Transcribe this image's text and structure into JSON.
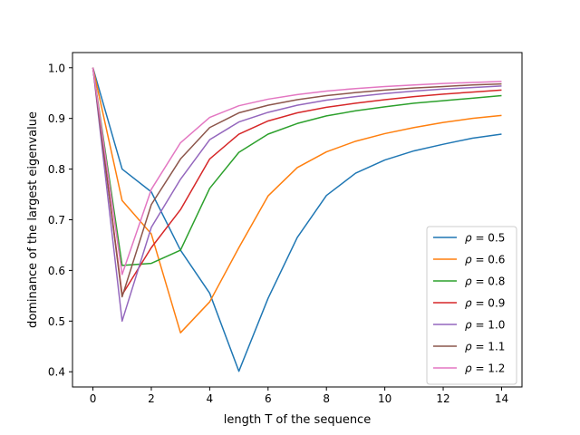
{
  "chart_data": {
    "type": "line",
    "title": "",
    "xlabel": "length T of the sequence",
    "ylabel": "dominance of the largest eigenvalue",
    "xlim": [
      -0.7,
      14.7
    ],
    "ylim": [
      0.37,
      1.03
    ],
    "xticks": [
      0,
      2,
      4,
      6,
      8,
      10,
      12,
      14
    ],
    "yticks": [
      0.4,
      0.5,
      0.6,
      0.7,
      0.8,
      0.9,
      1.0
    ],
    "xtick_labels": [
      "0",
      "2",
      "4",
      "6",
      "8",
      "10",
      "12",
      "14"
    ],
    "ytick_labels": [
      "0.4",
      "0.5",
      "0.6",
      "0.7",
      "0.8",
      "0.9",
      "1.0"
    ],
    "grid": false,
    "legend_position": "lower right",
    "x": [
      0,
      1,
      2,
      3,
      4,
      5,
      6,
      7,
      8,
      9,
      10,
      11,
      12,
      13,
      14
    ],
    "series": [
      {
        "name": "ρ = 0.5",
        "symbol": "ρ",
        "value_label": "= 0.5",
        "color": "#1f77b4",
        "values": [
          1.0,
          0.8,
          0.755,
          0.64,
          0.555,
          0.401,
          0.545,
          0.665,
          0.748,
          0.792,
          0.818,
          0.836,
          0.849,
          0.861,
          0.869
        ]
      },
      {
        "name": "ρ = 0.6",
        "symbol": "ρ",
        "value_label": "= 0.6",
        "color": "#ff7f0e",
        "values": [
          1.0,
          0.738,
          0.672,
          0.477,
          0.538,
          0.645,
          0.747,
          0.803,
          0.834,
          0.855,
          0.87,
          0.882,
          0.892,
          0.9,
          0.906
        ]
      },
      {
        "name": "ρ = 0.8",
        "symbol": "ρ",
        "value_label": "= 0.8",
        "color": "#2ca02c",
        "values": [
          1.0,
          0.61,
          0.614,
          0.64,
          0.762,
          0.833,
          0.869,
          0.89,
          0.905,
          0.915,
          0.923,
          0.93,
          0.935,
          0.94,
          0.945
        ]
      },
      {
        "name": "ρ = 0.9",
        "symbol": "ρ",
        "value_label": "= 0.9",
        "color": "#d62728",
        "values": [
          1.0,
          0.552,
          0.645,
          0.72,
          0.82,
          0.869,
          0.895,
          0.911,
          0.922,
          0.93,
          0.937,
          0.943,
          0.948,
          0.952,
          0.956
        ]
      },
      {
        "name": "ρ = 1.0",
        "symbol": "ρ",
        "value_label": "= 1.0",
        "color": "#9467bd",
        "values": [
          1.0,
          0.5,
          0.685,
          0.78,
          0.858,
          0.893,
          0.912,
          0.926,
          0.936,
          0.943,
          0.949,
          0.954,
          0.958,
          0.961,
          0.964
        ]
      },
      {
        "name": "ρ = 1.1",
        "symbol": "ρ",
        "value_label": "= 1.1",
        "color": "#8c564b",
        "values": [
          1.0,
          0.548,
          0.73,
          0.82,
          0.882,
          0.911,
          0.926,
          0.937,
          0.945,
          0.951,
          0.956,
          0.96,
          0.963,
          0.966,
          0.968
        ]
      },
      {
        "name": "ρ = 1.2",
        "symbol": "ρ",
        "value_label": "= 1.2",
        "color": "#e377c2",
        "values": [
          1.0,
          0.592,
          0.76,
          0.852,
          0.902,
          0.925,
          0.938,
          0.947,
          0.954,
          0.959,
          0.963,
          0.966,
          0.969,
          0.971,
          0.973
        ]
      }
    ]
  }
}
